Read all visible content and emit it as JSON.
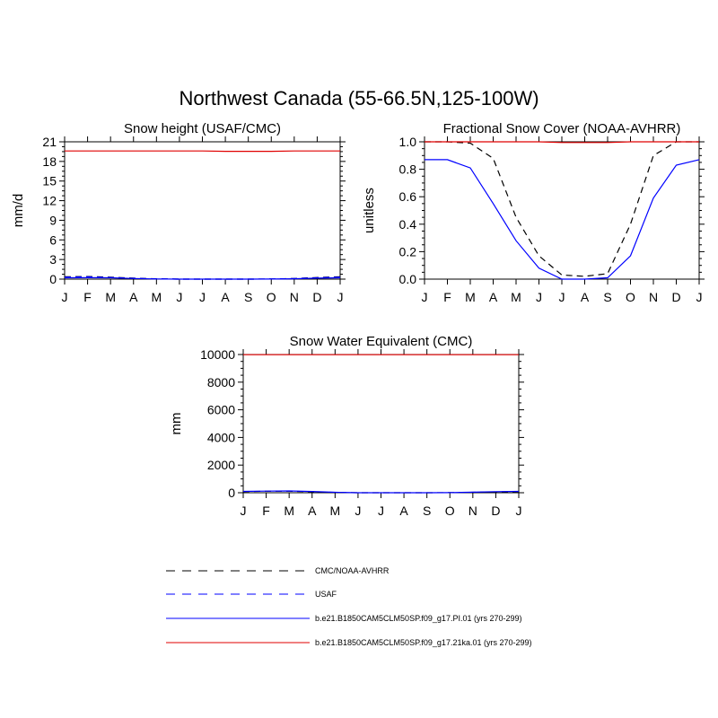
{
  "figure_title": "Northwest Canada (55-66.5N,125-100W)",
  "colors": {
    "obs_black": "#000000",
    "usaf_blue": "#0000ff",
    "model_pi_blue": "#0000ff",
    "model_21ka_red": "#e00000"
  },
  "legend": [
    {
      "label": "CMC/NOAA-AVHRR",
      "color": "#000000",
      "dash": true
    },
    {
      "label": "USAF",
      "color": "#0000ff",
      "dash": true
    },
    {
      "label": "b.e21.B1850CAM5CLM50SP.f09_g17.PI.01 (yrs 270-299)",
      "color": "#0000ff",
      "dash": false
    },
    {
      "label": "b.e21.B1850CAM5CLM50SP.f09_g17.21ka.01 (yrs 270-299)",
      "color": "#e00000",
      "dash": false
    }
  ],
  "chart_data": [
    {
      "type": "line",
      "title": "Snow height (USAF/CMC)",
      "xlabel": "",
      "ylabel": "mm/d",
      "categories": [
        "J",
        "F",
        "M",
        "A",
        "M",
        "J",
        "J",
        "A",
        "S",
        "O",
        "N",
        "D",
        "J"
      ],
      "ylim": [
        0,
        21
      ],
      "yticks": [
        "0",
        "3",
        "6",
        "9",
        "12",
        "15",
        "18",
        "21"
      ],
      "series": [
        {
          "name": "CMC/NOAA-AVHRR",
          "color": "#000000",
          "dash": true,
          "values": [
            0.35,
            0.4,
            0.3,
            0.15,
            0.05,
            0.0,
            0.0,
            0.0,
            0.0,
            0.02,
            0.1,
            0.25,
            0.35
          ]
        },
        {
          "name": "USAF",
          "color": "#0000ff",
          "dash": true,
          "values": [
            0.3,
            0.35,
            0.25,
            0.12,
            0.04,
            0.0,
            0.0,
            0.0,
            0.0,
            0.02,
            0.08,
            0.2,
            0.3
          ]
        },
        {
          "name": "b.e21.B1850CAM5CLM50SP.f09_g17.PI.01 (yrs 270-299)",
          "color": "#0000ff",
          "dash": false,
          "values": [
            0.2,
            0.22,
            0.2,
            0.1,
            0.03,
            0.0,
            0.0,
            0.0,
            0.0,
            0.01,
            0.05,
            0.15,
            0.2
          ]
        },
        {
          "name": "b.e21.B1850CAM5CLM50SP.f09_g17.21ka.01 (yrs 270-299)",
          "color": "#e00000",
          "dash": false,
          "values": [
            19.6,
            19.6,
            19.6,
            19.6,
            19.6,
            19.6,
            19.6,
            19.55,
            19.55,
            19.55,
            19.6,
            19.6,
            19.6
          ]
        }
      ]
    },
    {
      "type": "line",
      "title": "Fractional Snow Cover (NOAA-AVHRR)",
      "xlabel": "",
      "ylabel": "unitless",
      "categories": [
        "J",
        "F",
        "M",
        "A",
        "M",
        "J",
        "J",
        "A",
        "S",
        "O",
        "N",
        "D",
        "J"
      ],
      "ylim": [
        0,
        1.0
      ],
      "yticks": [
        "0.0",
        "0.2",
        "0.4",
        "0.6",
        "0.8",
        "1.0"
      ],
      "series": [
        {
          "name": "CMC/NOAA-AVHRR",
          "color": "#000000",
          "dash": true,
          "values": [
            1.0,
            1.0,
            0.99,
            0.88,
            0.45,
            0.17,
            0.03,
            0.02,
            0.04,
            0.4,
            0.9,
            1.0,
            1.0
          ]
        },
        {
          "name": "b.e21.B1850CAM5CLM50SP.f09_g17.PI.01 (yrs 270-299)",
          "color": "#0000ff",
          "dash": false,
          "values": [
            0.87,
            0.87,
            0.81,
            0.55,
            0.28,
            0.08,
            0.0,
            0.0,
            0.01,
            0.17,
            0.59,
            0.83,
            0.87
          ]
        },
        {
          "name": "b.e21.B1850CAM5CLM50SP.f09_g17.21ka.01 (yrs 270-299)",
          "color": "#e00000",
          "dash": false,
          "values": [
            1.0,
            1.0,
            1.0,
            1.0,
            1.0,
            1.0,
            0.995,
            0.995,
            0.995,
            1.0,
            1.0,
            1.0,
            1.0
          ]
        }
      ]
    },
    {
      "type": "line",
      "title": "Snow Water Equivalent (CMC)",
      "xlabel": "",
      "ylabel": "mm",
      "categories": [
        "J",
        "F",
        "M",
        "A",
        "M",
        "J",
        "J",
        "A",
        "S",
        "O",
        "N",
        "D",
        "J"
      ],
      "ylim": [
        0,
        10000
      ],
      "yticks": [
        "0",
        "2000",
        "4000",
        "6000",
        "8000",
        "10000"
      ],
      "series": [
        {
          "name": "CMC/NOAA-AVHRR",
          "color": "#000000",
          "dash": true,
          "values": [
            80,
            110,
            110,
            70,
            25,
            2,
            0,
            0,
            0,
            5,
            30,
            60,
            80
          ]
        },
        {
          "name": "b.e21.B1850CAM5CLM50SP.f09_g17.PI.01 (yrs 270-299)",
          "color": "#0000ff",
          "dash": false,
          "values": [
            100,
            120,
            130,
            90,
            30,
            2,
            0,
            0,
            0,
            5,
            40,
            80,
            100
          ]
        },
        {
          "name": "b.e21.B1850CAM5CLM50SP.f09_g17.21ka.01 (yrs 270-299)",
          "color": "#e00000",
          "dash": false,
          "values": [
            9990,
            9990,
            9990,
            9990,
            9990,
            9990,
            9990,
            9990,
            9990,
            9990,
            9990,
            9990,
            9990
          ]
        }
      ]
    }
  ]
}
